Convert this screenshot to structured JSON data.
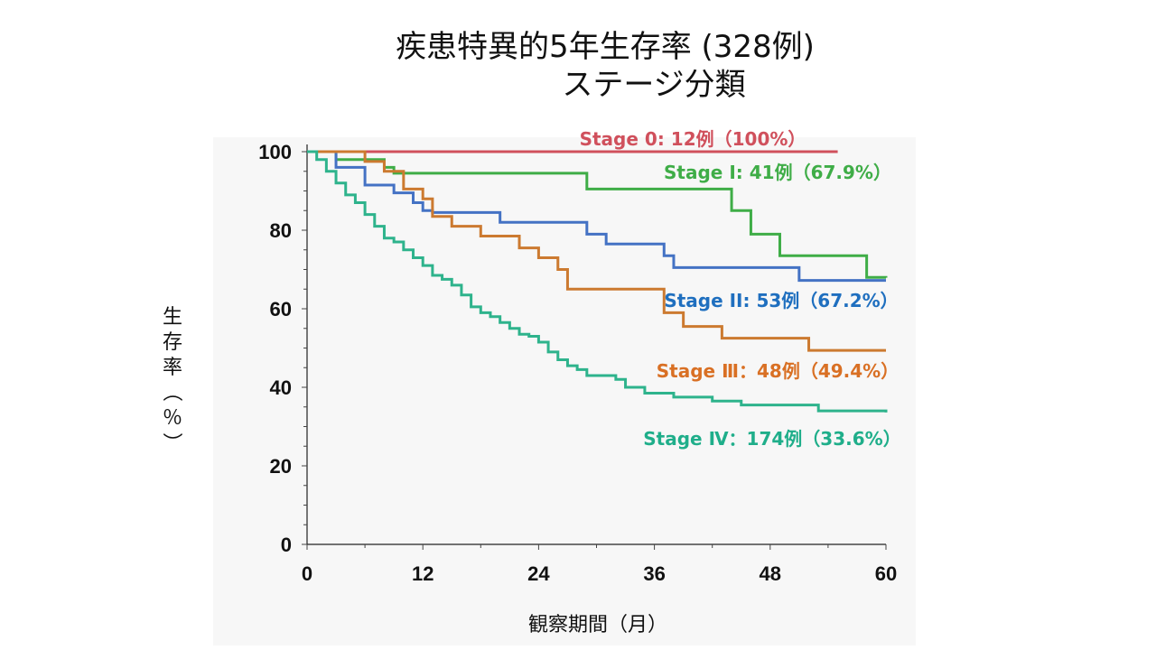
{
  "title": {
    "line1": "疾患特異的5年生存率 (328例)",
    "line2": "ステージ分類"
  },
  "chart_data": {
    "type": "line",
    "step": true,
    "xlabel": "観察期間（月）",
    "ylabel": "生存率（％）",
    "xlim": [
      0,
      60
    ],
    "ylim": [
      0,
      100
    ],
    "xticks": [
      "0",
      "12",
      "24",
      "36",
      "48",
      "60"
    ],
    "yticks": [
      "0",
      "20",
      "40",
      "60",
      "80",
      "100"
    ],
    "grid": false,
    "series": [
      {
        "name": "Stage 0: 12例（100%）",
        "color": "#d0505c",
        "x": [
          0,
          55
        ],
        "y": [
          100,
          100
        ]
      },
      {
        "name": "Stage I: 41例（67.9%）",
        "color": "#3fad47",
        "x": [
          0,
          3,
          8,
          9,
          29,
          44,
          46,
          49,
          58,
          60
        ],
        "y": [
          100,
          98,
          96,
          94.5,
          90.5,
          85,
          79,
          73.5,
          68,
          67.9
        ]
      },
      {
        "name": "Stage II: 53例（67.2%）",
        "color": "#4472c4",
        "x": [
          0,
          3,
          6,
          9,
          11,
          12,
          13,
          20,
          29,
          31,
          37,
          38,
          51,
          60
        ],
        "y": [
          100,
          96,
          91.5,
          89.5,
          87,
          85,
          84.5,
          82,
          79,
          76.5,
          73.5,
          70.5,
          67.2,
          67.2
        ],
        "label_color": "#1f6fbf"
      },
      {
        "name": "Stage Ⅲ：48例（49.4%）",
        "color": "#cc7a30",
        "x": [
          0,
          6,
          8,
          10,
          12,
          13,
          15,
          18,
          22,
          24,
          26,
          27,
          37,
          39,
          43,
          52,
          60
        ],
        "y": [
          100,
          97.5,
          95,
          90.5,
          88,
          83.5,
          81,
          78.5,
          75.5,
          73,
          70,
          65,
          59,
          55.5,
          52.5,
          49.4,
          49.4
        ],
        "label_color": "#d97024"
      },
      {
        "name": "Stage Ⅳ：174例（33.6%）",
        "color": "#2eb38c",
        "x": [
          0,
          1,
          2,
          3,
          4,
          5,
          6,
          7,
          8,
          9,
          10,
          11,
          12,
          13,
          14,
          15,
          16,
          17,
          18,
          19,
          20,
          21,
          22,
          23,
          24,
          25,
          26,
          27,
          28,
          29,
          32,
          33,
          35,
          38,
          42,
          45,
          53,
          60
        ],
        "y": [
          100,
          98,
          95,
          92,
          89,
          87,
          84,
          81,
          78,
          77,
          75,
          73,
          71,
          68.5,
          67.5,
          66,
          63.5,
          60.5,
          59,
          58,
          56.5,
          55,
          53.5,
          53,
          51.5,
          49,
          47,
          45.5,
          44.5,
          43,
          42,
          40,
          38.5,
          37.5,
          36.5,
          35.5,
          34,
          33.6
        ],
        "label_color": "#1fae8a"
      }
    ],
    "annotations": [
      "Stage 0: 12例（100%）",
      "Stage I: 41例（67.9%）",
      "Stage II: 53例（67.2%）",
      "Stage Ⅲ：48例（49.4%）",
      "Stage Ⅳ：174例（33.6%）"
    ]
  }
}
